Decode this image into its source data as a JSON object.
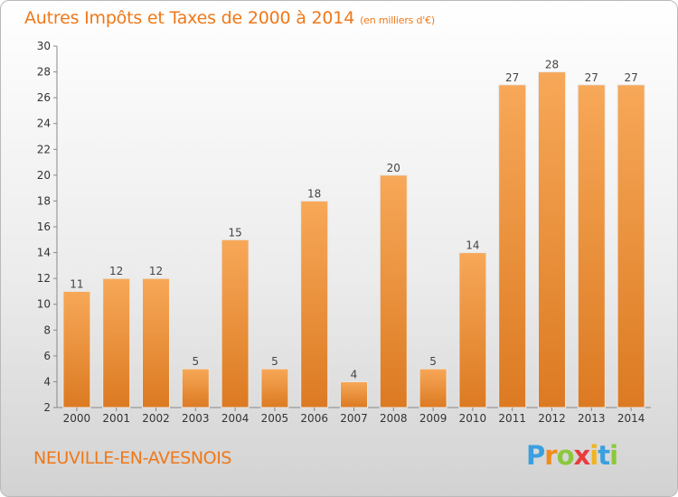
{
  "header": {
    "title": "Autres Impôts et Taxes de 2000 à 2014",
    "unit": "(en milliers d'€)"
  },
  "footer": {
    "commune": "NEUVILLE-EN-AVESNOIS",
    "logo": "Proxiti"
  },
  "colors": {
    "accent": "#f07818",
    "bar_light": "#f7a858",
    "bar_dark": "#dc7a22"
  },
  "chart_data": {
    "type": "bar",
    "title": "Autres Impôts et Taxes de 2000 à 2014",
    "xlabel": "",
    "ylabel": "",
    "categories": [
      "2000",
      "2001",
      "2002",
      "2003",
      "2004",
      "2005",
      "2006",
      "2007",
      "2008",
      "2009",
      "2010",
      "2011",
      "2012",
      "2013",
      "2014"
    ],
    "values": [
      11,
      12,
      12,
      5,
      15,
      5,
      18,
      4,
      20,
      5,
      14,
      27,
      28,
      27,
      27
    ],
    "ylim": [
      2,
      30
    ],
    "yticks": [
      2,
      4,
      6,
      8,
      10,
      12,
      14,
      16,
      18,
      20,
      22,
      24,
      26,
      28,
      30
    ],
    "grid": false,
    "legend": "none"
  }
}
